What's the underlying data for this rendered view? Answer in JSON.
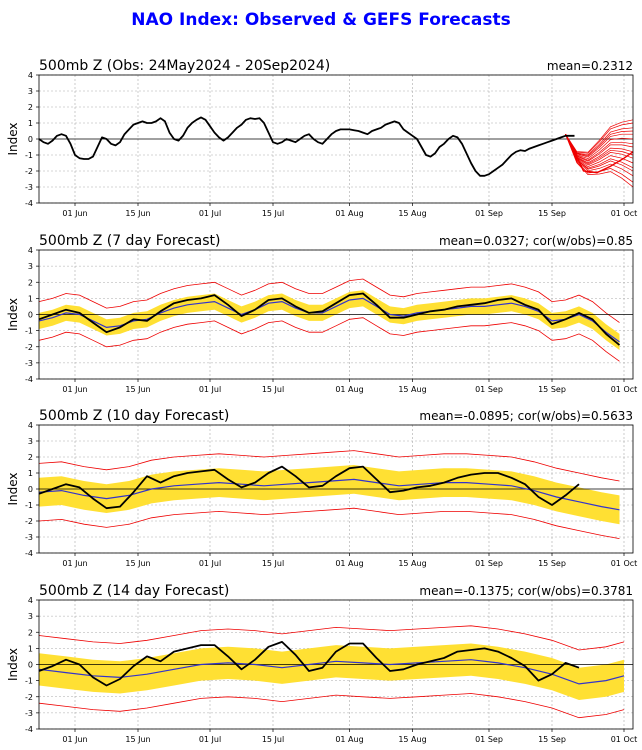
{
  "title": "NAO Index: Observed & GEFS Forecasts",
  "colors": {
    "title": "#0000ff",
    "observed": "#000000",
    "mean": "#3333cc",
    "spread": "#ffe033",
    "members": "#ee0000",
    "grid": "#aaaaaa"
  },
  "chart_data": [
    {
      "type": "line",
      "title": "500mb Z (Obs: 24May2024 - 20Sep2024)",
      "stats": "mean=0.2312",
      "ylabel": "Index",
      "xlim": [
        0,
        132
      ],
      "ylim": [
        -4,
        4
      ],
      "x_ticks": [
        {
          "x": 8,
          "label": "01 Jun"
        },
        {
          "x": 22,
          "label": "15 Jun"
        },
        {
          "x": 38,
          "label": "01 Jul"
        },
        {
          "x": 52,
          "label": "15 Jul"
        },
        {
          "x": 69,
          "label": "01 Aug"
        },
        {
          "x": 83,
          "label": "15 Aug"
        },
        {
          "x": 100,
          "label": "01 Sep"
        },
        {
          "x": 114,
          "label": "15 Sep"
        },
        {
          "x": 130,
          "label": "01 Oct"
        }
      ],
      "y_ticks": [
        -4,
        -3,
        -2,
        -1,
        0,
        1,
        2,
        3,
        4
      ],
      "observed": {
        "x": [
          0,
          1,
          2,
          3,
          4,
          5,
          6,
          7,
          8,
          9,
          10,
          11,
          12,
          13,
          14,
          15,
          16,
          17,
          18,
          19,
          20,
          21,
          22,
          23,
          24,
          25,
          26,
          27,
          28,
          29,
          30,
          31,
          32,
          33,
          34,
          35,
          36,
          37,
          38,
          39,
          40,
          41,
          42,
          43,
          44,
          45,
          46,
          47,
          48,
          49,
          50,
          51,
          52,
          53,
          54,
          55,
          56,
          57,
          58,
          59,
          60,
          61,
          62,
          63,
          64,
          65,
          66,
          67,
          68,
          69,
          70,
          71,
          72,
          73,
          74,
          75,
          76,
          77,
          78,
          79,
          80,
          81,
          82,
          83,
          84,
          85,
          86,
          87,
          88,
          89,
          90,
          91,
          92,
          93,
          94,
          95,
          96,
          97,
          98,
          99,
          100,
          101,
          102,
          103,
          104,
          105,
          106,
          107,
          108,
          109,
          110,
          111,
          112,
          113,
          114,
          115,
          116,
          117,
          118,
          119
        ],
        "y": [
          0,
          -0.2,
          -0.3,
          -0.1,
          0.2,
          0.3,
          0.2,
          -0.3,
          -1.0,
          -1.2,
          -1.25,
          -1.25,
          -1.1,
          -0.5,
          0.1,
          0,
          -0.3,
          -0.4,
          -0.2,
          0.3,
          0.6,
          0.9,
          1.0,
          1.1,
          1.0,
          1.0,
          1.1,
          1.3,
          1.1,
          0.4,
          0,
          -0.1,
          0.2,
          0.7,
          1.0,
          1.2,
          1.35,
          1.2,
          0.8,
          0.4,
          0.1,
          -0.1,
          0.1,
          0.4,
          0.7,
          0.9,
          1.2,
          1.3,
          1.25,
          1.3,
          1.0,
          0.4,
          -0.2,
          -0.3,
          -0.2,
          0,
          -0.1,
          -0.2,
          0,
          0.2,
          0.3,
          0,
          -0.2,
          -0.3,
          0,
          0.3,
          0.5,
          0.6,
          0.6,
          0.6,
          0.55,
          0.5,
          0.4,
          0.3,
          0.5,
          0.6,
          0.7,
          0.9,
          1.0,
          1.1,
          1.0,
          0.6,
          0.4,
          0.2,
          0,
          -0.5,
          -1.0,
          -1.1,
          -0.9,
          -0.5,
          -0.3,
          0,
          0.2,
          0.1,
          -0.3,
          -0.9,
          -1.5,
          -2.0,
          -2.3,
          -2.3,
          -2.2,
          -2.0,
          -1.8,
          -1.6,
          -1.3,
          -1.0,
          -0.8,
          -0.7,
          -0.75,
          -0.6,
          -0.5,
          -0.4,
          -0.3,
          -0.2,
          -0.1,
          0,
          0.1,
          0.2,
          0.2,
          0.2
        ]
      },
      "members": {
        "start_x": 117,
        "start_y": 0.3,
        "end_x": 132,
        "ends": [
          1.2,
          1.0,
          0.7,
          0.5,
          0.3,
          0.0,
          -0.3,
          -0.5,
          -0.8,
          -1.0,
          -1.2,
          -1.5,
          -1.8,
          -2.0,
          -2.3,
          -2.7,
          -3.0
        ]
      },
      "ens_mean": {
        "x": [
          117,
          119,
          121,
          124,
          127,
          130,
          132
        ],
        "y": [
          0.3,
          -0.8,
          -2.0,
          -2.1,
          -1.7,
          -1.2,
          -0.8
        ]
      }
    },
    {
      "type": "line",
      "title": "500mb Z (7 day Forecast)",
      "stats": "mean=0.0327; cor(w/obs)=0.85",
      "ylabel": "Index",
      "xlim": [
        0,
        132
      ],
      "ylim": [
        -4,
        4
      ],
      "x_ticks": [
        {
          "x": 8,
          "label": "01 Jun"
        },
        {
          "x": 22,
          "label": "15 Jun"
        },
        {
          "x": 38,
          "label": "01 Jul"
        },
        {
          "x": 52,
          "label": "15 Jul"
        },
        {
          "x": 69,
          "label": "01 Aug"
        },
        {
          "x": 83,
          "label": "15 Aug"
        },
        {
          "x": 100,
          "label": "01 Sep"
        },
        {
          "x": 114,
          "label": "15 Sep"
        },
        {
          "x": 130,
          "label": "01 Oct"
        }
      ],
      "y_ticks": [
        -4,
        -3,
        -2,
        -1,
        0,
        1,
        2,
        3,
        4
      ],
      "observed": {
        "x": [
          0,
          3,
          6,
          9,
          12,
          15,
          18,
          21,
          24,
          27,
          30,
          33,
          36,
          39,
          42,
          45,
          48,
          51,
          54,
          57,
          60,
          63,
          66,
          69,
          72,
          75,
          78,
          81,
          84,
          87,
          90,
          93,
          96,
          99,
          102,
          105,
          108,
          111,
          114,
          117,
          120,
          123,
          126,
          129
        ],
        "y": [
          -0.3,
          0,
          0.3,
          0.1,
          -0.5,
          -1.1,
          -0.8,
          -0.3,
          -0.4,
          0.2,
          0.7,
          0.9,
          1.0,
          1.2,
          0.6,
          -0.1,
          0.3,
          0.9,
          1.0,
          0.5,
          0.1,
          0.2,
          0.7,
          1.2,
          1.3,
          0.6,
          -0.2,
          -0.2,
          0,
          0.2,
          0.3,
          0.5,
          0.6,
          0.7,
          0.9,
          1.0,
          0.6,
          0.3,
          -0.6,
          -0.3,
          0.1,
          -0.3,
          -1.2,
          -1.9
        ]
      },
      "ens_mean": {
        "x": [
          0,
          3,
          6,
          9,
          12,
          15,
          18,
          21,
          24,
          27,
          30,
          33,
          36,
          39,
          42,
          45,
          48,
          51,
          54,
          57,
          60,
          63,
          66,
          69,
          72,
          75,
          78,
          81,
          84,
          87,
          90,
          93,
          96,
          99,
          102,
          105,
          108,
          111,
          114,
          117,
          120,
          123,
          126,
          129
        ],
        "y": [
          -0.4,
          -0.2,
          0.1,
          0,
          -0.4,
          -0.8,
          -0.7,
          -0.4,
          -0.3,
          0.1,
          0.4,
          0.6,
          0.7,
          0.8,
          0.4,
          0,
          0.3,
          0.7,
          0.8,
          0.4,
          0.1,
          0.1,
          0.5,
          0.9,
          1.0,
          0.5,
          0,
          -0.1,
          0.1,
          0.2,
          0.3,
          0.4,
          0.5,
          0.5,
          0.6,
          0.7,
          0.5,
          0.2,
          -0.4,
          -0.3,
          0,
          -0.4,
          -1.1,
          -1.7
        ]
      },
      "spread_half_width": 0.5,
      "envelope_half_width": 1.2
    },
    {
      "type": "line",
      "title": "500mb Z (10 day Forecast)",
      "stats": "mean=-0.0895; cor(w/obs)=0.5633",
      "ylabel": "Index",
      "xlim": [
        0,
        132
      ],
      "ylim": [
        -4,
        4
      ],
      "x_ticks": [
        {
          "x": 8,
          "label": "01 Jun"
        },
        {
          "x": 22,
          "label": "15 Jun"
        },
        {
          "x": 38,
          "label": "01 Jul"
        },
        {
          "x": 52,
          "label": "15 Jul"
        },
        {
          "x": 69,
          "label": "01 Aug"
        },
        {
          "x": 83,
          "label": "15 Aug"
        },
        {
          "x": 100,
          "label": "01 Sep"
        },
        {
          "x": 114,
          "label": "15 Sep"
        },
        {
          "x": 130,
          "label": "01 Oct"
        }
      ],
      "y_ticks": [
        -4,
        -3,
        -2,
        -1,
        0,
        1,
        2,
        3,
        4
      ],
      "observed": {
        "x": [
          0,
          3,
          6,
          9,
          12,
          15,
          18,
          21,
          24,
          27,
          30,
          33,
          36,
          39,
          42,
          45,
          48,
          51,
          54,
          57,
          60,
          63,
          66,
          69,
          72,
          75,
          78,
          81,
          84,
          87,
          90,
          93,
          96,
          99,
          102,
          105,
          108,
          111,
          114,
          117,
          120
        ],
        "y": [
          -0.3,
          0,
          0.3,
          0.1,
          -0.6,
          -1.2,
          -1.1,
          -0.2,
          0.8,
          0.4,
          0.8,
          1.0,
          1.1,
          1.2,
          0.6,
          0.1,
          0.4,
          1.0,
          1.4,
          0.8,
          0.1,
          0.2,
          0.8,
          1.3,
          1.4,
          0.6,
          -0.2,
          -0.1,
          0.1,
          0.2,
          0.4,
          0.7,
          0.9,
          1.0,
          1.0,
          0.7,
          0.3,
          -0.5,
          -1.0,
          -0.4,
          0.3
        ]
      },
      "ens_mean": {
        "x": [
          0,
          5,
          10,
          15,
          20,
          25,
          30,
          35,
          40,
          45,
          50,
          55,
          60,
          65,
          70,
          75,
          80,
          85,
          90,
          95,
          100,
          105,
          110,
          115,
          120,
          125,
          129
        ],
        "y": [
          -0.2,
          -0.1,
          -0.4,
          -0.6,
          -0.4,
          0,
          0.2,
          0.3,
          0.4,
          0.3,
          0.2,
          0.3,
          0.4,
          0.5,
          0.6,
          0.4,
          0.2,
          0.3,
          0.4,
          0.4,
          0.3,
          0.2,
          -0.1,
          -0.5,
          -0.8,
          -1.1,
          -1.3
        ]
      },
      "spread_half_width": 0.9,
      "envelope_half_width": 1.8
    },
    {
      "type": "line",
      "title": "500mb Z (14 day Forecast)",
      "stats": "mean=-0.1375; cor(w/obs)=0.3781",
      "ylabel": "Index",
      "xlim": [
        0,
        132
      ],
      "ylim": [
        -4,
        4
      ],
      "x_ticks": [
        {
          "x": 8,
          "label": "01 Jun"
        },
        {
          "x": 22,
          "label": "15 Jun"
        },
        {
          "x": 38,
          "label": "01 Jul"
        },
        {
          "x": 52,
          "label": "15 Jul"
        },
        {
          "x": 69,
          "label": "01 Aug"
        },
        {
          "x": 83,
          "label": "15 Aug"
        },
        {
          "x": 100,
          "label": "01 Sep"
        },
        {
          "x": 114,
          "label": "15 Sep"
        },
        {
          "x": 130,
          "label": "01 Oct"
        }
      ],
      "y_ticks": [
        -4,
        -3,
        -2,
        -1,
        0,
        1,
        2,
        3,
        4
      ],
      "observed": {
        "x": [
          0,
          3,
          6,
          9,
          12,
          15,
          18,
          21,
          24,
          27,
          30,
          33,
          36,
          39,
          42,
          45,
          48,
          51,
          54,
          57,
          60,
          63,
          66,
          69,
          72,
          75,
          78,
          81,
          84,
          87,
          90,
          93,
          96,
          99,
          102,
          105,
          108,
          111,
          114,
          117,
          120
        ],
        "y": [
          -0.4,
          -0.1,
          0.3,
          0,
          -0.8,
          -1.3,
          -0.9,
          -0.1,
          0.5,
          0.2,
          0.8,
          1.0,
          1.2,
          1.2,
          0.5,
          -0.3,
          0.3,
          1.1,
          1.4,
          0.6,
          -0.4,
          -0.2,
          0.8,
          1.3,
          1.3,
          0.4,
          -0.4,
          -0.3,
          0,
          0.2,
          0.4,
          0.8,
          0.9,
          1.0,
          0.8,
          0.4,
          -0.1,
          -1.0,
          -0.6,
          0.1,
          -0.2
        ]
      },
      "ens_mean": {
        "x": [
          0,
          6,
          12,
          18,
          24,
          30,
          36,
          42,
          48,
          54,
          60,
          66,
          72,
          78,
          84,
          90,
          96,
          102,
          108,
          114,
          120,
          126,
          130
        ],
        "y": [
          -0.3,
          -0.5,
          -0.7,
          -0.8,
          -0.6,
          -0.3,
          0,
          0.1,
          0,
          -0.2,
          0,
          0.2,
          0.1,
          0,
          0.1,
          0.2,
          0.3,
          0.1,
          -0.2,
          -0.6,
          -1.2,
          -1.0,
          -0.7
        ]
      },
      "spread_half_width": 1.0,
      "envelope_half_width": 2.1
    }
  ]
}
